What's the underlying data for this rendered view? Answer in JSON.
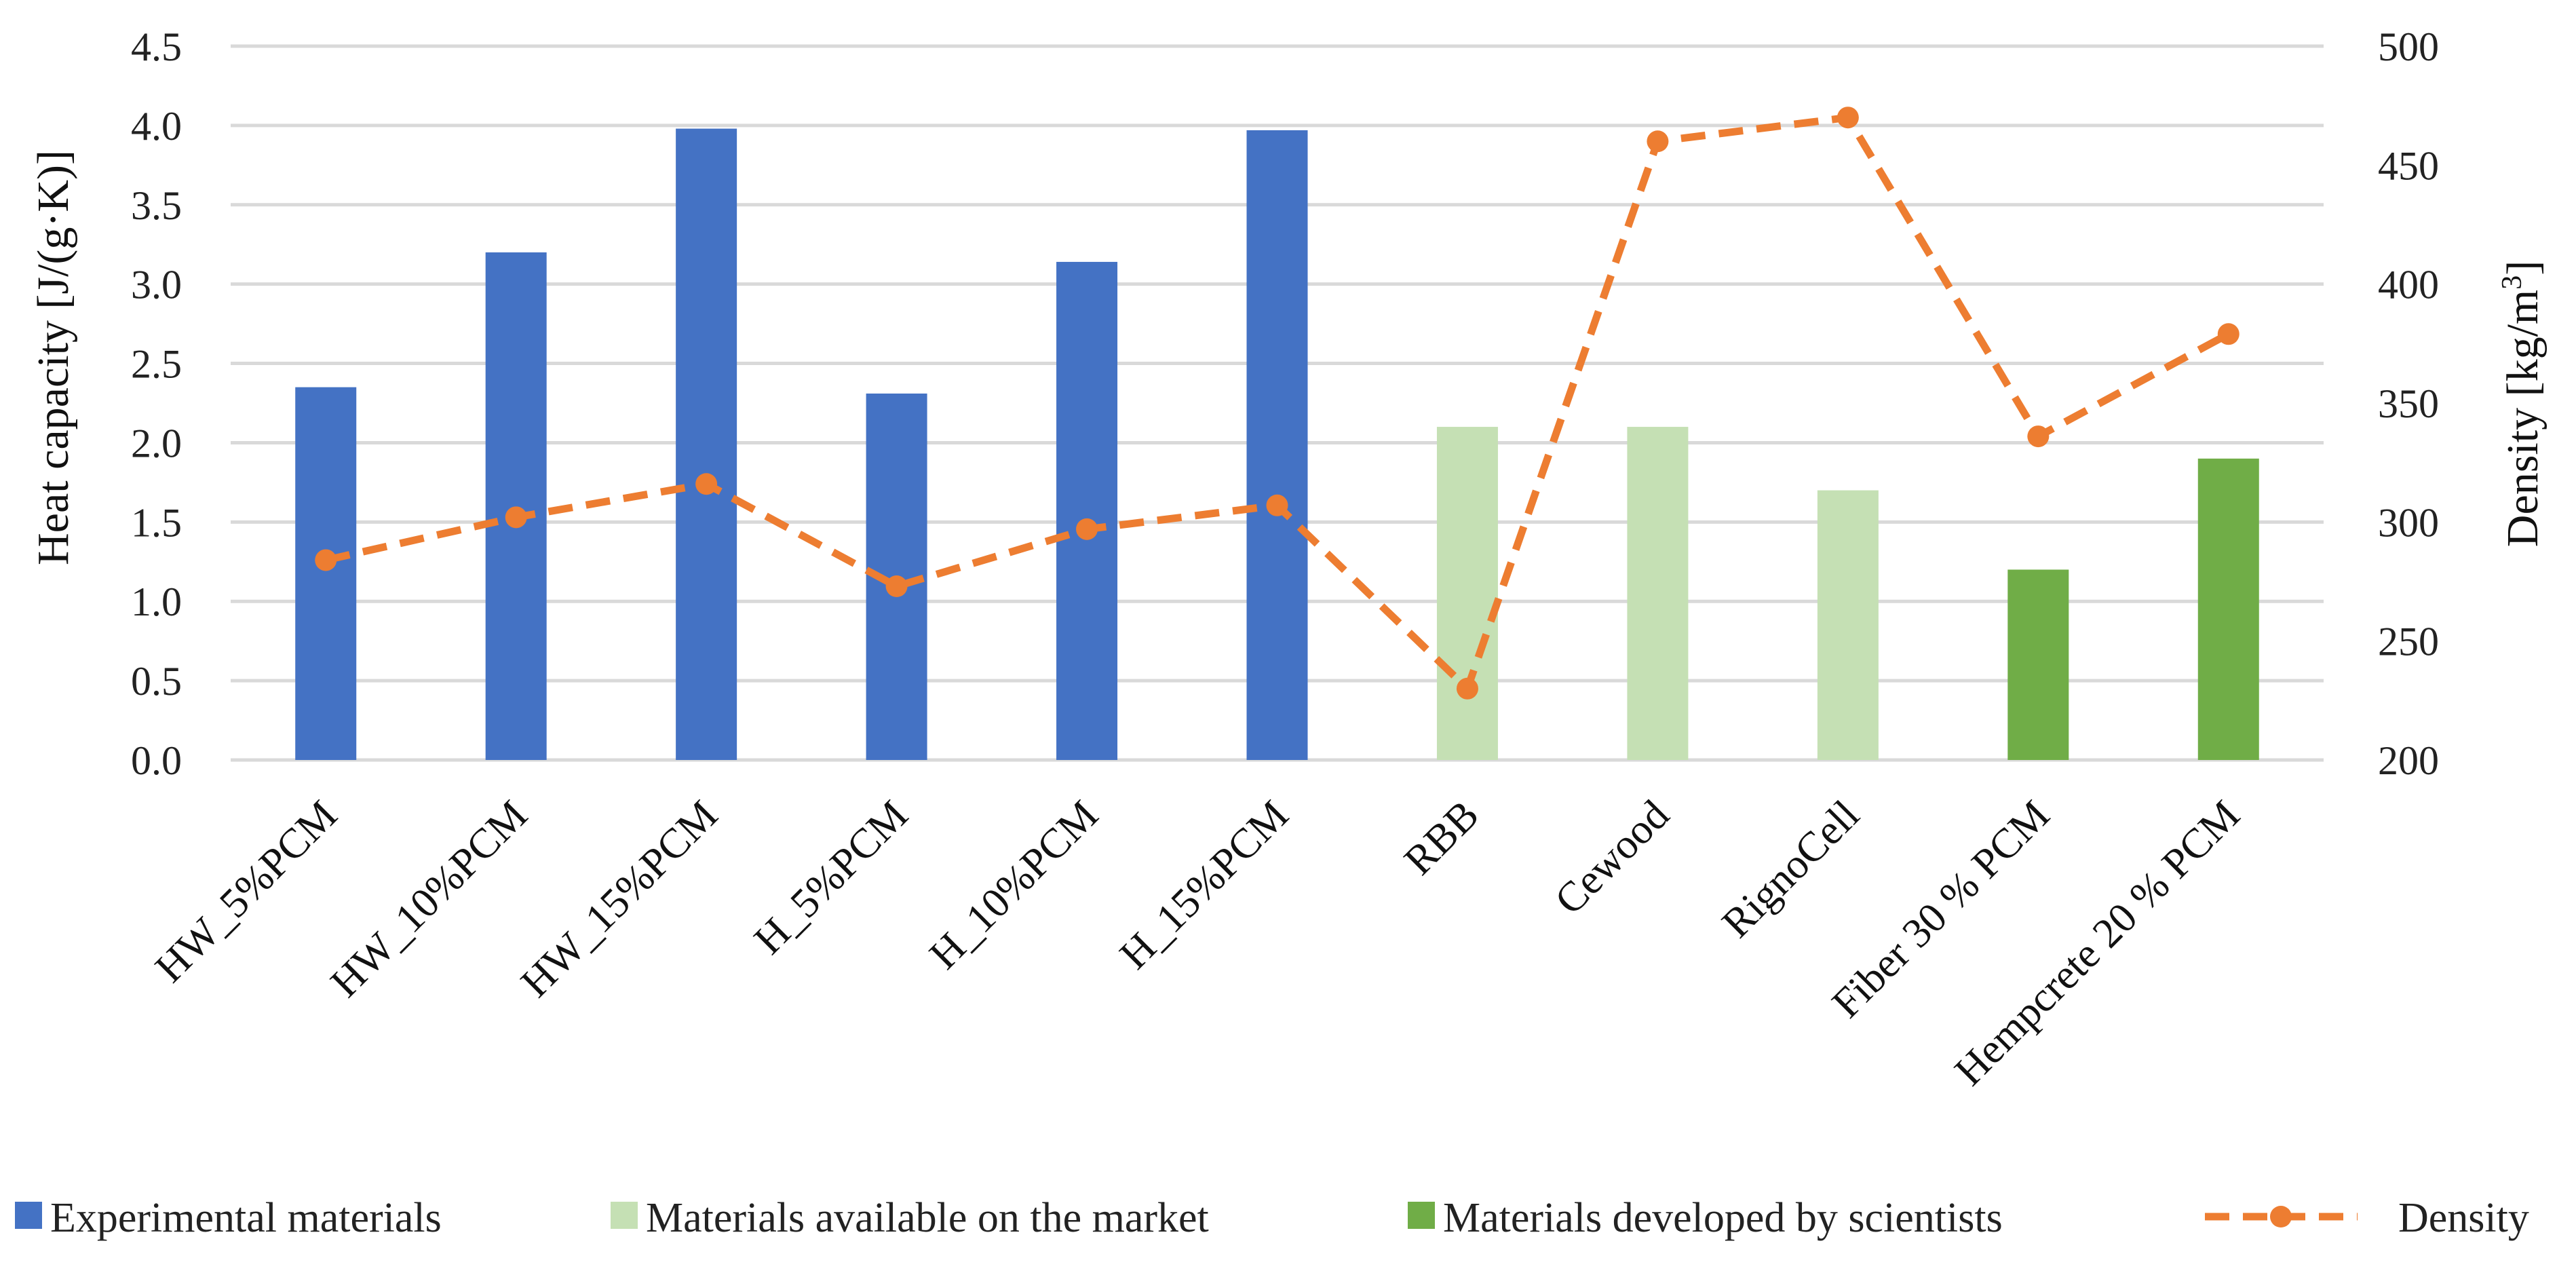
{
  "chart_data": {
    "type": "bar",
    "categories": [
      "HW_5%PCM",
      "HW_10%PCM",
      "HW_15%PCM",
      "H_5%PCM",
      "H_10%PCM",
      "H_15%PCM",
      "RBB",
      "Cewood",
      "RignoCell",
      "Fiber 30 % PCM",
      "Hempcrete 20 % PCM"
    ],
    "bar_groups": [
      "Experimental materials",
      "Experimental materials",
      "Experimental materials",
      "Experimental materials",
      "Experimental materials",
      "Experimental materials",
      "Materials available on the market",
      "Materials available on the market",
      "Materials available on the market",
      "Materials developed by scientists",
      "Materials developed by scientists"
    ],
    "series": [
      {
        "name": "Heat capacity",
        "axis": "left",
        "values": [
          2.35,
          3.2,
          3.98,
          2.31,
          3.14,
          3.97,
          2.1,
          2.1,
          1.7,
          1.2,
          1.9
        ]
      },
      {
        "name": "Density",
        "axis": "right",
        "type": "line",
        "style": "dashed-with-markers",
        "values": [
          284,
          302,
          316,
          273,
          297,
          307,
          230,
          460,
          470,
          336,
          379
        ]
      }
    ],
    "legend": [
      {
        "label": "Experimental materials",
        "color": "#4472c4",
        "kind": "box"
      },
      {
        "label": "Materials available on the market",
        "color": "#c5e0b4",
        "kind": "box"
      },
      {
        "label": "Materials developed by scientists",
        "color": "#70ad47",
        "kind": "box"
      },
      {
        "label": "Density",
        "color": "#ed7d31",
        "kind": "line"
      }
    ],
    "ylabel": "Heat capacity [J/(g·K)]",
    "y2label_main": "Density [kg/m",
    "y2label_sup": "3",
    "y2label_end": "]",
    "ylim": [
      0,
      4.5
    ],
    "y_ticks": [
      "0.0",
      "0.5",
      "1.0",
      "1.5",
      "2.0",
      "2.5",
      "3.0",
      "3.5",
      "4.0",
      "4.5"
    ],
    "y2lim": [
      200,
      500
    ],
    "y2_ticks": [
      "200",
      "250",
      "300",
      "350",
      "400",
      "450",
      "500"
    ],
    "grid": true,
    "legend_position": "bottom"
  },
  "colors": {
    "experimental": "#4472c4",
    "market": "#c5e0b4",
    "scientists": "#70ad47",
    "density": "#ed7d31"
  }
}
